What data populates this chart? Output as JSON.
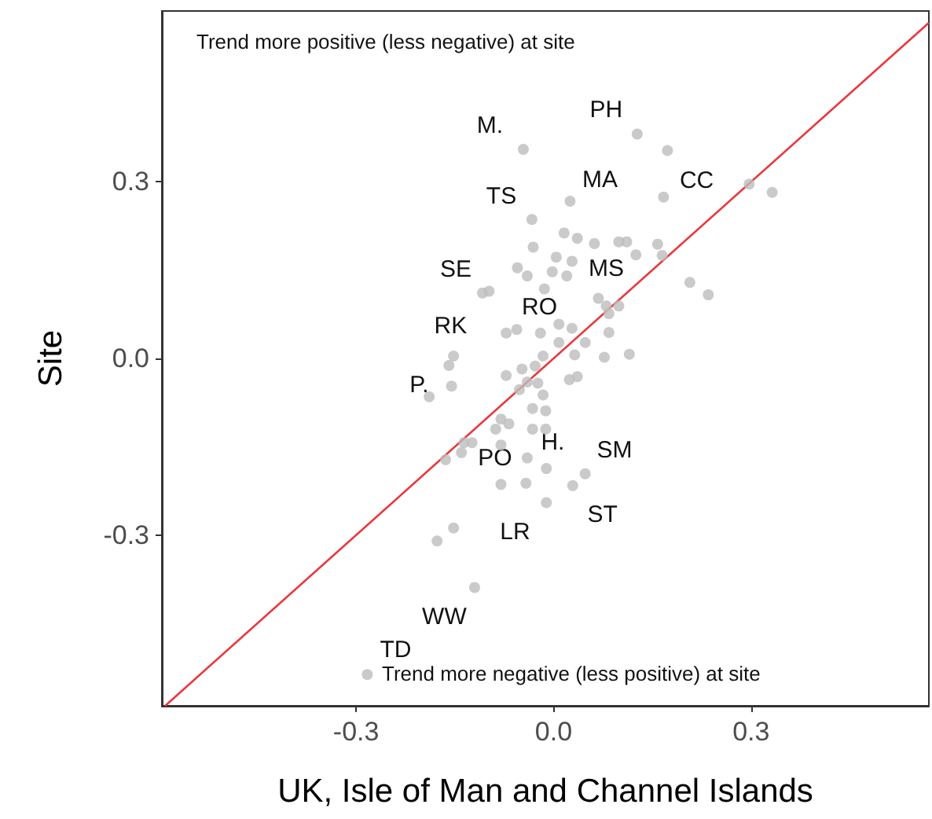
{
  "chart_data": {
    "type": "scatter",
    "xlabel": "UK, Isle of Man and Channel Islands",
    "ylabel": "Site",
    "xlim": [
      -0.595,
      0.57
    ],
    "ylim": [
      -0.59,
      0.59
    ],
    "xticks": [
      -0.3,
      {
        "value": 0,
        "label": "0.0"
      },
      0.3
    ],
    "yticks": [
      -0.3,
      {
        "value": 0,
        "label": "0.0"
      },
      0.3
    ],
    "grid": false,
    "series": [
      {
        "marker": "circle",
        "color": "#bdbdbd",
        "x": [
          0.127,
          0.173,
          -0.046,
          0.167,
          0.297,
          0.332,
          0.025,
          -0.033,
          -0.031,
          0.016,
          0.036,
          0.062,
          0.099,
          0.111,
          0.125,
          0.158,
          0.165,
          0.207,
          0.235,
          -0.055,
          -0.04,
          0.004,
          0.028,
          -0.002,
          0.02,
          -0.108,
          -0.098,
          -0.014,
          0.068,
          0.08,
          0.099,
          0.084,
          -0.072,
          -0.056,
          -0.02,
          0.008,
          0.028,
          0.084,
          0.008,
          0.048,
          -0.152,
          -0.016,
          0.032,
          0.077,
          0.115,
          -0.159,
          -0.155,
          -0.189,
          -0.072,
          -0.048,
          -0.028,
          -0.04,
          -0.052,
          -0.024,
          -0.016,
          -0.032,
          -0.012,
          0.036,
          0.024,
          -0.08,
          -0.068,
          -0.088,
          -0.032,
          -0.012,
          -0.136,
          -0.124,
          -0.14,
          -0.164,
          -0.08,
          -0.04,
          -0.011,
          0.048,
          0.029,
          -0.08,
          -0.042,
          -0.011,
          -0.152,
          -0.177,
          -0.12,
          -0.283
        ],
        "values": [
          0.381,
          0.353,
          0.355,
          0.274,
          0.296,
          0.282,
          0.267,
          0.236,
          0.189,
          0.213,
          0.204,
          0.195,
          0.198,
          0.198,
          0.176,
          0.194,
          0.175,
          0.129,
          0.108,
          0.154,
          0.14,
          0.172,
          0.165,
          0.147,
          0.14,
          0.111,
          0.114,
          0.118,
          0.102,
          0.089,
          0.089,
          0.076,
          0.043,
          0.049,
          0.043,
          0.058,
          0.051,
          0.044,
          0.027,
          0.027,
          0.004,
          0.004,
          0.006,
          0.002,
          0.007,
          -0.012,
          -0.047,
          -0.065,
          -0.029,
          -0.018,
          -0.013,
          -0.04,
          -0.053,
          -0.042,
          -0.062,
          -0.085,
          -0.089,
          -0.031,
          -0.036,
          -0.103,
          -0.111,
          -0.12,
          -0.12,
          -0.12,
          -0.143,
          -0.143,
          -0.16,
          -0.172,
          -0.147,
          -0.169,
          -0.187,
          -0.196,
          -0.216,
          -0.214,
          -0.212,
          -0.245,
          -0.288,
          -0.31,
          -0.389,
          -0.537
        ]
      },
      {
        "type": "line",
        "color": "#e8383d",
        "x": [
          -0.59,
          0.57
        ],
        "values": [
          -0.59,
          0.57
        ]
      }
    ],
    "annotations": [
      "Trend more positive (less negative) at site",
      "Trend more negative (less positive) at site",
      "M.",
      "PH",
      "MA",
      "CC",
      "TS",
      "SE",
      "MS",
      "RO",
      "RK",
      "P.",
      "H.",
      "SM",
      "PO",
      "ST",
      "LR",
      "WW",
      "TD"
    ]
  }
}
